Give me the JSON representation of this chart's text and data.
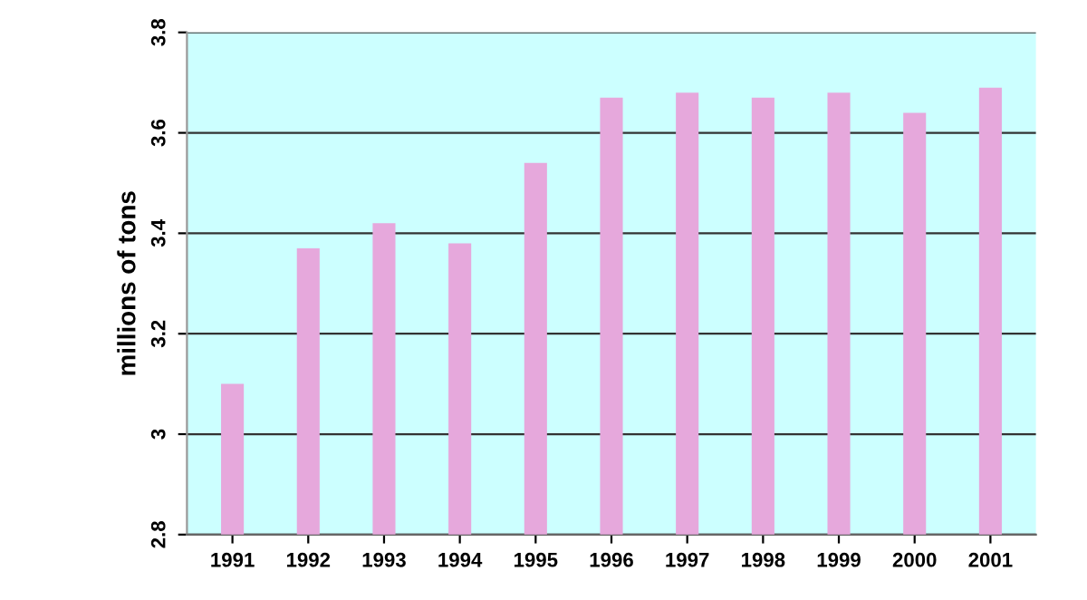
{
  "chart_data": {
    "type": "bar",
    "ylabel": "millions of tons",
    "categories": [
      "1991",
      "1992",
      "1993",
      "1994",
      "1995",
      "1996",
      "1997",
      "1998",
      "1999",
      "2000",
      "2001"
    ],
    "values": [
      3.1,
      3.37,
      3.42,
      3.38,
      3.54,
      3.67,
      3.68,
      3.67,
      3.68,
      3.64,
      3.69
    ],
    "color": "#e6a8dc",
    "ylim": [
      2.8,
      3.8
    ],
    "yticks": [
      2.8,
      3,
      3.2,
      3.4,
      3.6,
      3.8
    ],
    "grid": "y"
  }
}
